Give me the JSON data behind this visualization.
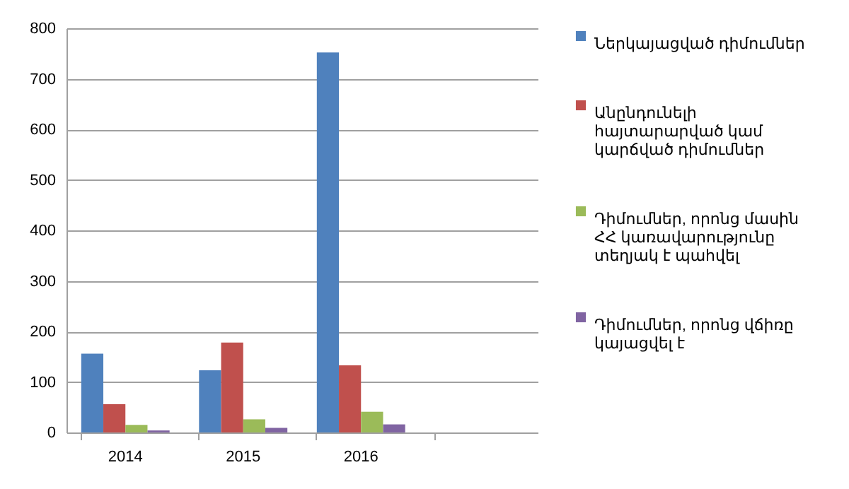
{
  "chart_data": {
    "type": "bar",
    "categories": [
      "2014",
      "2015",
      "2016",
      null
    ],
    "series": [
      {
        "name": "Ներկայացված դիմումներ",
        "color": "#4f81bd",
        "values": [
          156,
          123,
          752,
          null
        ]
      },
      {
        "name": "Անընդունելի հայտարարված կամ կարճված դիմումներ",
        "color": "#c0504d",
        "values": [
          56,
          178,
          133,
          null
        ]
      },
      {
        "name": "Դիմումներ, որոնց մասին ՀՀ կառավարությունը տեղյակ է պահվել",
        "color": "#9bbb59",
        "values": [
          15,
          26,
          41,
          null
        ]
      },
      {
        "name": "Դիմումներ, որոնց վճիռը կայացվել է",
        "color": "#8064a2",
        "values": [
          4,
          9,
          16,
          null
        ]
      }
    ],
    "ylim": [
      0,
      800
    ],
    "yticks": [
      0,
      100,
      200,
      300,
      400,
      500,
      600,
      700,
      800
    ],
    "grid": "y",
    "legend": "right"
  }
}
